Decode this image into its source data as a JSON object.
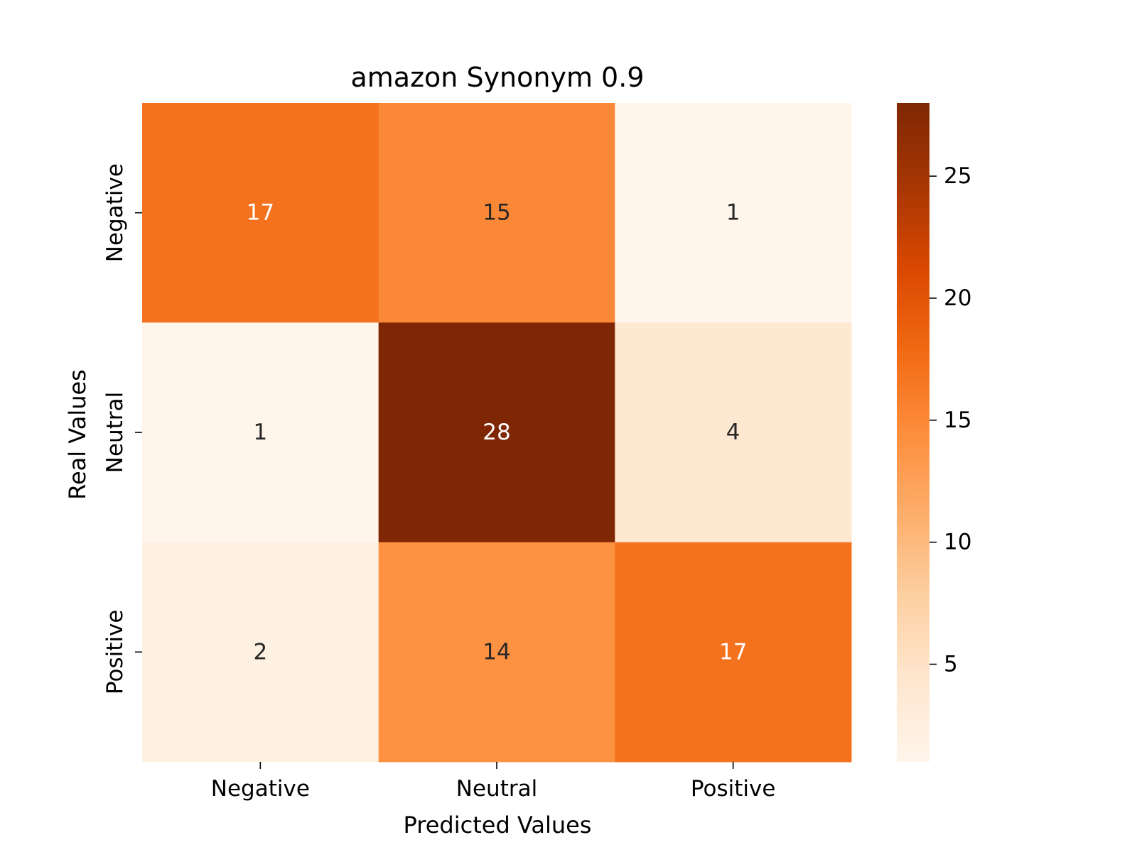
{
  "chart_data": {
    "type": "heatmap",
    "title": "amazon Synonym 0.9",
    "xlabel": "Predicted Values",
    "ylabel": "Real Values",
    "x_categories": [
      "Negative",
      "Neutral",
      "Positive"
    ],
    "y_categories": [
      "Negative",
      "Neutral",
      "Positive"
    ],
    "values": [
      [
        17,
        15,
        1
      ],
      [
        1,
        28,
        4
      ],
      [
        2,
        14,
        17
      ]
    ],
    "colormap": "Oranges",
    "colorbar": {
      "min": 1,
      "max": 28,
      "ticks": [
        5,
        10,
        15,
        20,
        25
      ]
    },
    "colors": {
      "scale": [
        "#fff5eb",
        "#fee6ce",
        "#fdd0a2",
        "#fdae6b",
        "#fd8d3c",
        "#f16913",
        "#d94801",
        "#a63603",
        "#7f2704"
      ],
      "text_light": "#ffffff",
      "text_dark": "#262626"
    }
  }
}
